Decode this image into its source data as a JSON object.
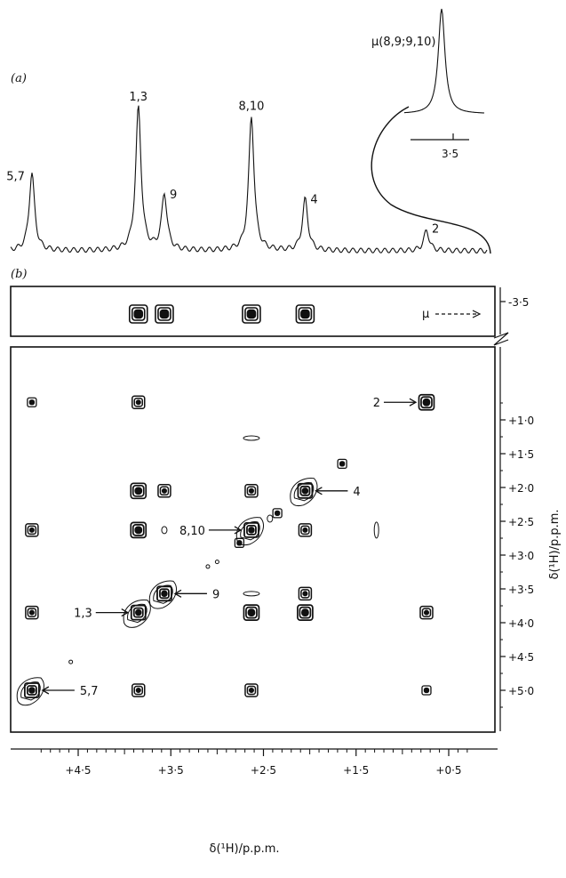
{
  "chart_data": [
    {
      "panel_label": "(a)",
      "type": "line",
      "description_peaks": [
        {
          "label": "5,7",
          "x": 5.0,
          "height": 0.5
        },
        {
          "label": "1,3",
          "x": 3.85,
          "height": 0.92
        },
        {
          "label": "9",
          "x": 3.57,
          "height": 0.36
        },
        {
          "label": "8,10",
          "x": 2.63,
          "height": 0.86
        },
        {
          "label": "4",
          "x": 2.05,
          "height": 0.33
        },
        {
          "label": "2",
          "x": 0.74,
          "height": 0.13
        }
      ],
      "inset": {
        "label": "μ(8,9;9,10)",
        "tick_label": "3·5",
        "peak_x": -3.5
      }
    },
    {
      "panel_label": "(b)",
      "type": "scatter",
      "xlabel": "δ(¹H)/p.p.m.",
      "ylabel": "δ(¹H)/p.p.m.",
      "x_ticks": [
        "+4·5",
        "+3·5",
        "+2·5",
        "+1·5",
        "+0·5"
      ],
      "x_tick_values": [
        4.5,
        3.5,
        2.5,
        1.5,
        0.5
      ],
      "y_ticks": [
        "+1·0",
        "+1·5",
        "+2·0",
        "+2·5",
        "+3·0",
        "+3·5",
        "+4·0",
        "+4·5",
        "+5·0"
      ],
      "y_tick_values": [
        1.0,
        1.5,
        2.0,
        2.5,
        3.0,
        3.5,
        4.0,
        4.5,
        5.0
      ],
      "top_strip": {
        "y_tick": "-3·5",
        "arrow_label": "μ",
        "peaks_x": [
          3.85,
          3.57,
          2.63,
          2.05
        ]
      },
      "diagonal_annotations": [
        {
          "label": "2",
          "x": 0.74,
          "y": 0.74,
          "side": "left"
        },
        {
          "label": "4",
          "x": 2.05,
          "y": 2.05,
          "side": "right"
        },
        {
          "label": "8,10",
          "x": 2.63,
          "y": 2.63,
          "side": "left"
        },
        {
          "label": "9",
          "x": 3.57,
          "y": 3.57,
          "side": "right"
        },
        {
          "label": "1,3",
          "x": 3.85,
          "y": 3.85,
          "side": "left"
        },
        {
          "label": "5,7",
          "x": 5.0,
          "y": 5.0,
          "side": "right"
        }
      ],
      "cross_peaks": [
        {
          "x": 5.0,
          "y": 0.74,
          "size": "small"
        },
        {
          "x": 3.85,
          "y": 0.74,
          "size": "medium"
        },
        {
          "x": 0.74,
          "y": 0.74,
          "size": "large"
        },
        {
          "x": 2.63,
          "y": 1.27,
          "size": "ellipse"
        },
        {
          "x": 1.65,
          "y": 1.65,
          "size": "small"
        },
        {
          "x": 3.85,
          "y": 2.05,
          "size": "large"
        },
        {
          "x": 3.57,
          "y": 2.05,
          "size": "medium"
        },
        {
          "x": 2.63,
          "y": 2.05,
          "size": "medium"
        },
        {
          "x": 2.05,
          "y": 2.05,
          "size": "diag"
        },
        {
          "x": 2.35,
          "y": 2.38,
          "size": "small"
        },
        {
          "x": 2.43,
          "y": 2.46,
          "size": "tiny"
        },
        {
          "x": 5.0,
          "y": 2.63,
          "size": "medium"
        },
        {
          "x": 3.85,
          "y": 2.63,
          "size": "large"
        },
        {
          "x": 3.57,
          "y": 2.63,
          "size": "tiny"
        },
        {
          "x": 2.63,
          "y": 2.63,
          "size": "diag"
        },
        {
          "x": 2.05,
          "y": 2.63,
          "size": "medium"
        },
        {
          "x": 1.28,
          "y": 2.63,
          "size": "vellipse"
        },
        {
          "x": 2.76,
          "y": 2.82,
          "size": "small"
        },
        {
          "x": 3.0,
          "y": 3.1,
          "size": "dot"
        },
        {
          "x": 3.1,
          "y": 3.17,
          "size": "dot"
        },
        {
          "x": 3.57,
          "y": 3.57,
          "size": "diag"
        },
        {
          "x": 2.63,
          "y": 3.57,
          "size": "hellipse"
        },
        {
          "x": 2.05,
          "y": 3.57,
          "size": "medium"
        },
        {
          "x": 5.0,
          "y": 3.85,
          "size": "medium"
        },
        {
          "x": 3.85,
          "y": 3.85,
          "size": "diag"
        },
        {
          "x": 2.63,
          "y": 3.85,
          "size": "large"
        },
        {
          "x": 2.05,
          "y": 3.85,
          "size": "large"
        },
        {
          "x": 0.74,
          "y": 3.85,
          "size": "medium"
        },
        {
          "x": 4.58,
          "y": 4.58,
          "size": "dot"
        },
        {
          "x": 5.0,
          "y": 5.0,
          "size": "diag"
        },
        {
          "x": 3.85,
          "y": 5.0,
          "size": "medium"
        },
        {
          "x": 2.63,
          "y": 5.0,
          "size": "medium"
        },
        {
          "x": 0.74,
          "y": 5.0,
          "size": "small"
        }
      ]
    }
  ]
}
